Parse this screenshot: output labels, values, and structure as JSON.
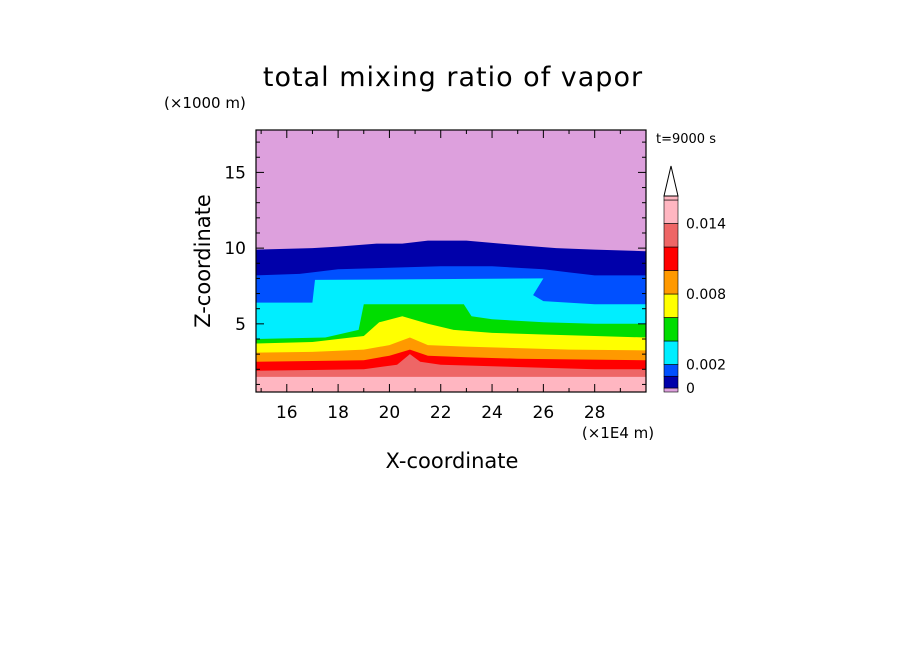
{
  "chart_data": {
    "type": "heatmap",
    "title": "total mixing ratio of vapor",
    "time_label": "t=9000 s",
    "xlabel": "X-coordinate",
    "ylabel": "Z-coordinate",
    "x_unit": "(×1E4 m)",
    "y_unit": "(×1000 m)",
    "x_ticks": [
      "16",
      "18",
      "20",
      "22",
      "24",
      "26",
      "28"
    ],
    "y_ticks": [
      "5",
      "10",
      "15"
    ],
    "xlim": [
      14.8,
      30
    ],
    "ylim": [
      0.5,
      17.8
    ],
    "colorbar": {
      "levels": [
        0,
        0.001,
        0.002,
        0.004,
        0.006,
        0.008,
        0.01,
        0.012,
        0.014,
        0.016
      ],
      "colors": [
        "#dda0dd",
        "#0000aa",
        "#0050ff",
        "#00eeff",
        "#00dd00",
        "#ffff00",
        "#ff9900",
        "#ff0000",
        "#ee6666",
        "#ffb6c1"
      ],
      "tick_labels": [
        "0",
        "0.002",
        "0.008",
        "0.014"
      ],
      "extend": "max"
    },
    "layers": [
      {
        "name": "above 0.016",
        "color": "#ffb6c1",
        "top": [
          [
            14.8,
            1.5
          ],
          [
            30,
            1.5
          ]
        ]
      },
      {
        "name": "0.014-0.016",
        "color": "#ee6666",
        "top": [
          [
            14.8,
            1.9
          ],
          [
            17,
            1.95
          ],
          [
            19,
            2.0
          ],
          [
            20.3,
            2.3
          ],
          [
            20.8,
            3.0
          ],
          [
            21.2,
            2.5
          ],
          [
            22,
            2.3
          ],
          [
            24,
            2.2
          ],
          [
            26,
            2.1
          ],
          [
            28,
            2.0
          ],
          [
            30,
            2.0
          ]
        ]
      },
      {
        "name": "0.012-0.014",
        "color": "#ff0000",
        "top": [
          [
            14.8,
            2.5
          ],
          [
            17,
            2.55
          ],
          [
            19,
            2.6
          ],
          [
            20,
            2.9
          ],
          [
            20.8,
            3.3
          ],
          [
            21.5,
            2.9
          ],
          [
            23,
            2.8
          ],
          [
            25,
            2.7
          ],
          [
            27,
            2.65
          ],
          [
            30,
            2.6
          ]
        ]
      },
      {
        "name": "0.010-0.012",
        "color": "#ff9900",
        "top": [
          [
            14.8,
            3.1
          ],
          [
            17,
            3.15
          ],
          [
            19,
            3.3
          ],
          [
            20,
            3.6
          ],
          [
            20.8,
            4.1
          ],
          [
            21.5,
            3.6
          ],
          [
            23,
            3.5
          ],
          [
            25,
            3.4
          ],
          [
            27,
            3.3
          ],
          [
            30,
            3.25
          ]
        ]
      },
      {
        "name": "0.008-0.010",
        "color": "#ffff00",
        "top": [
          [
            14.8,
            3.7
          ],
          [
            17,
            3.8
          ],
          [
            19,
            4.2
          ],
          [
            19.6,
            5.1
          ],
          [
            20.5,
            5.5
          ],
          [
            21.5,
            5.0
          ],
          [
            22.5,
            4.6
          ],
          [
            24,
            4.4
          ],
          [
            26,
            4.3
          ],
          [
            28,
            4.2
          ],
          [
            30,
            4.1
          ]
        ]
      },
      {
        "name": "0.006-0.008",
        "color": "#00dd00",
        "top": [
          [
            14.8,
            4.0
          ],
          [
            17.5,
            4.1
          ],
          [
            18.8,
            4.6
          ],
          [
            19.0,
            6.3
          ],
          [
            22.9,
            6.3
          ],
          [
            23.2,
            5.5
          ],
          [
            24,
            5.3
          ],
          [
            26,
            5.1
          ],
          [
            28,
            5.0
          ],
          [
            30,
            5.0
          ]
        ]
      },
      {
        "name": "0.002-0.006",
        "color": "#00eeff",
        "top": [
          [
            14.8,
            6.4
          ],
          [
            17,
            6.4
          ],
          [
            17.1,
            7.9
          ],
          [
            26.0,
            8.0
          ],
          [
            25.6,
            6.9
          ],
          [
            26,
            6.5
          ],
          [
            28,
            6.3
          ],
          [
            30,
            6.3
          ]
        ]
      },
      {
        "name": "0.001-0.002",
        "color": "#0050ff",
        "top": [
          [
            14.8,
            8.2
          ],
          [
            16.5,
            8.3
          ],
          [
            17,
            8.4
          ],
          [
            18,
            8.6
          ],
          [
            20,
            8.7
          ],
          [
            22,
            8.8
          ],
          [
            24,
            8.8
          ],
          [
            26,
            8.6
          ],
          [
            27,
            8.4
          ],
          [
            28,
            8.2
          ],
          [
            30,
            8.2
          ]
        ]
      },
      {
        "name": "0-0.001",
        "color": "#0000aa",
        "top": [
          [
            14.8,
            9.9
          ],
          [
            17,
            10.0
          ],
          [
            18,
            10.1
          ],
          [
            19.5,
            10.3
          ],
          [
            20.5,
            10.3
          ],
          [
            21.5,
            10.5
          ],
          [
            23,
            10.5
          ],
          [
            25,
            10.2
          ],
          [
            26.5,
            10.0
          ],
          [
            28,
            9.9
          ],
          [
            30,
            9.8
          ]
        ]
      },
      {
        "name": "below 0",
        "color": "#dda0dd",
        "top": [
          [
            14.8,
            17.8
          ],
          [
            30,
            17.8
          ]
        ]
      }
    ]
  }
}
